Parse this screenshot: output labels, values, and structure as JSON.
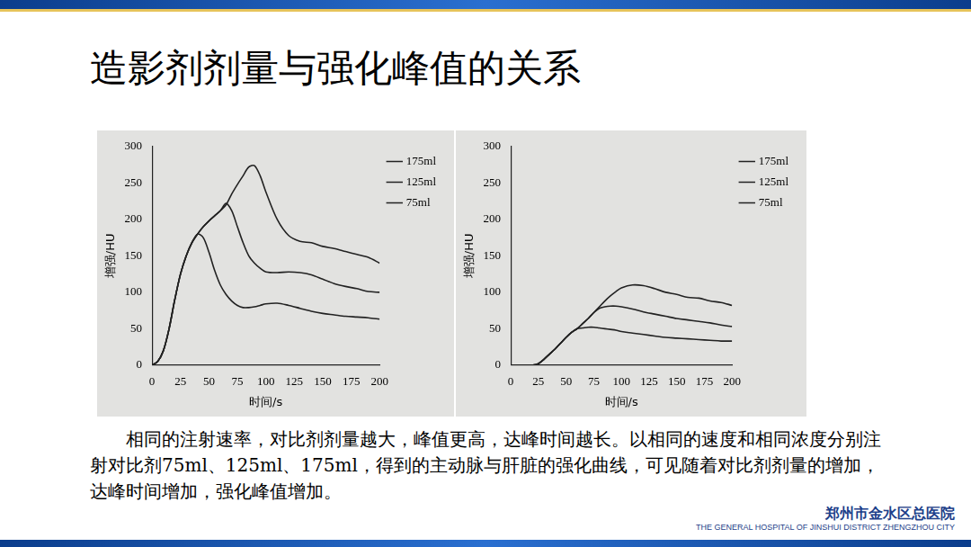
{
  "title": "造影剂剂量与强化峰值的关系",
  "chart_data": [
    {
      "type": "line",
      "x_label": "时间/s",
      "y_label": "增强/HU",
      "x": [
        0,
        5,
        10,
        15,
        20,
        25,
        30,
        35,
        40,
        45,
        50,
        55,
        60,
        65,
        70,
        75,
        80,
        85,
        90,
        95,
        100,
        110,
        120,
        130,
        140,
        150,
        160,
        170,
        180,
        190,
        200
      ],
      "series": [
        {
          "name": "175ml",
          "color": "#222222",
          "values": [
            0,
            5,
            20,
            50,
            90,
            125,
            150,
            168,
            180,
            190,
            198,
            205,
            212,
            220,
            235,
            248,
            260,
            272,
            274,
            260,
            238,
            200,
            178,
            170,
            168,
            163,
            160,
            156,
            152,
            148,
            140
          ]
        },
        {
          "name": "125ml",
          "color": "#222222",
          "values": [
            0,
            5,
            20,
            50,
            90,
            125,
            150,
            168,
            180,
            190,
            198,
            205,
            212,
            222,
            212,
            190,
            168,
            150,
            140,
            133,
            128,
            127,
            128,
            127,
            124,
            118,
            112,
            108,
            105,
            101,
            100
          ]
        },
        {
          "name": "75ml",
          "color": "#222222",
          "values": [
            0,
            5,
            20,
            50,
            90,
            125,
            150,
            168,
            180,
            175,
            155,
            130,
            110,
            97,
            88,
            82,
            79,
            79,
            80,
            82,
            84,
            85,
            82,
            78,
            74,
            71,
            69,
            67,
            66,
            65,
            63
          ]
        }
      ],
      "xlim": [
        0,
        200
      ],
      "xticks": [
        0,
        25,
        50,
        75,
        100,
        125,
        150,
        175,
        200
      ],
      "ylim": [
        0,
        300
      ],
      "yticks": [
        0,
        50,
        100,
        150,
        200,
        250,
        300
      ],
      "grid": false,
      "legend": "right"
    },
    {
      "type": "line",
      "x_label": "时间/s",
      "y_label": "增强/HU",
      "x": [
        0,
        5,
        10,
        15,
        20,
        25,
        30,
        35,
        40,
        45,
        50,
        55,
        60,
        65,
        70,
        75,
        80,
        85,
        90,
        95,
        100,
        110,
        120,
        130,
        140,
        150,
        160,
        170,
        180,
        190,
        200
      ],
      "series": [
        {
          "name": "175ml",
          "color": "#222222",
          "values": [
            0,
            0,
            0,
            0,
            0,
            2,
            8,
            15,
            22,
            30,
            38,
            45,
            50,
            57,
            64,
            72,
            80,
            88,
            95,
            101,
            106,
            110,
            109,
            105,
            100,
            97,
            93,
            92,
            88,
            86,
            82
          ]
        },
        {
          "name": "125ml",
          "color": "#222222",
          "values": [
            0,
            0,
            0,
            0,
            0,
            2,
            8,
            15,
            22,
            30,
            38,
            45,
            50,
            57,
            64,
            72,
            78,
            80,
            81,
            81,
            80,
            77,
            73,
            70,
            67,
            64,
            62,
            60,
            58,
            55,
            53
          ]
        },
        {
          "name": "75ml",
          "color": "#222222",
          "values": [
            0,
            0,
            0,
            0,
            0,
            2,
            8,
            15,
            22,
            30,
            38,
            45,
            50,
            51,
            52,
            52,
            51,
            50,
            49,
            48,
            46,
            44,
            42,
            40,
            38,
            37,
            36,
            35,
            34,
            33,
            33
          ]
        }
      ],
      "xlim": [
        0,
        200
      ],
      "xticks": [
        0,
        25,
        50,
        75,
        100,
        125,
        150,
        175,
        200
      ],
      "ylim": [
        0,
        300
      ],
      "yticks": [
        0,
        50,
        100,
        150,
        200,
        250,
        300
      ],
      "grid": false,
      "legend": "right"
    }
  ],
  "caption": "相同的注射速率，对比剂剂量越大，峰值更高，达峰时间越长。以相同的速度和相同浓度分别注射对比剂75ml、125ml、175ml，得到的主动脉与肝脏的强化曲线，可见随着对比剂剂量的增加，达峰时间增加，强化峰值增加。",
  "footer": {
    "name_cn": "郑州市金水区总医院",
    "name_en": "THE GENERAL HOSPITAL OF JINSHUI DISTRICT ZHENGZHOU CITY"
  }
}
